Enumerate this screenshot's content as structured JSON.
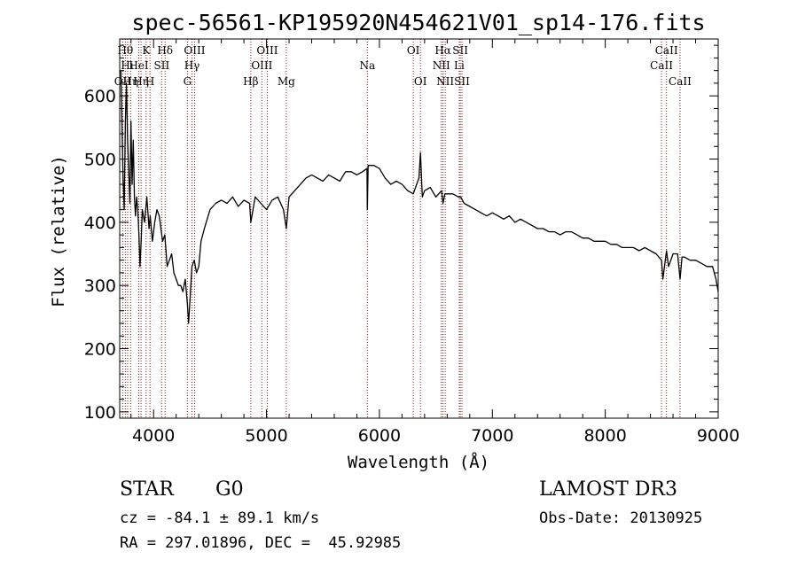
{
  "chart_data": {
    "type": "line",
    "title": "spec-56561-KP195920N454621V01_sp14-176.fits",
    "xlabel": "Wavelength (Å)",
    "ylabel": "Flux (relative)",
    "xlim": [
      3700,
      9000
    ],
    "ylim": [
      90,
      690
    ],
    "xticks": [
      4000,
      5000,
      6000,
      7000,
      8000,
      9000
    ],
    "yticks": [
      100,
      200,
      300,
      400,
      500,
      600
    ],
    "grid": false,
    "series": [
      {
        "color": "#000000",
        "x": [
          3710,
          3720,
          3730,
          3740,
          3750,
          3760,
          3770,
          3780,
          3790,
          3800,
          3810,
          3820,
          3830,
          3840,
          3850,
          3860,
          3870,
          3880,
          3890,
          3900,
          3920,
          3940,
          3960,
          3970,
          3990,
          4010,
          4030,
          4050,
          4080,
          4100,
          4120,
          4140,
          4160,
          4180,
          4200,
          4220,
          4240,
          4260,
          4280,
          4300,
          4310,
          4320,
          4330,
          4340,
          4360,
          4380,
          4400,
          4420,
          4450,
          4500,
          4550,
          4600,
          4650,
          4700,
          4750,
          4800,
          4850,
          4861,
          4900,
          4950,
          5000,
          5050,
          5100,
          5150,
          5175,
          5200,
          5250,
          5300,
          5350,
          5400,
          5450,
          5500,
          5550,
          5600,
          5650,
          5700,
          5750,
          5800,
          5850,
          5890,
          5893,
          5900,
          5950,
          6000,
          6050,
          6100,
          6150,
          6200,
          6250,
          6300,
          6350,
          6363,
          6380,
          6400,
          6450,
          6500,
          6550,
          6563,
          6580,
          6600,
          6650,
          6700,
          6720,
          6750,
          6800,
          6850,
          6900,
          6950,
          7000,
          7050,
          7100,
          7150,
          7200,
          7250,
          7300,
          7350,
          7400,
          7450,
          7500,
          7550,
          7600,
          7650,
          7700,
          7750,
          7800,
          7850,
          7900,
          7950,
          8000,
          8050,
          8100,
          8150,
          8200,
          8250,
          8300,
          8350,
          8400,
          8450,
          8498,
          8510,
          8542,
          8560,
          8600,
          8640,
          8662,
          8680,
          8700,
          8750,
          8800,
          8850,
          8900,
          8950,
          8980,
          9000
        ],
        "y": [
          640,
          560,
          470,
          420,
          560,
          620,
          530,
          480,
          430,
          560,
          460,
          530,
          440,
          410,
          440,
          420,
          380,
          330,
          370,
          420,
          400,
          440,
          390,
          410,
          370,
          400,
          420,
          410,
          370,
          380,
          330,
          340,
          350,
          320,
          310,
          300,
          300,
          290,
          310,
          270,
          240,
          270,
          300,
          330,
          340,
          320,
          330,
          370,
          390,
          420,
          430,
          435,
          430,
          440,
          425,
          435,
          430,
          400,
          440,
          430,
          420,
          435,
          440,
          420,
          390,
          440,
          450,
          460,
          470,
          475,
          470,
          465,
          475,
          470,
          465,
          480,
          480,
          475,
          480,
          485,
          420,
          490,
          490,
          485,
          470,
          460,
          465,
          460,
          450,
          445,
          470,
          510,
          440,
          450,
          455,
          440,
          450,
          430,
          445,
          445,
          445,
          440,
          440,
          430,
          425,
          420,
          415,
          410,
          415,
          410,
          405,
          410,
          400,
          405,
          400,
          395,
          390,
          390,
          385,
          385,
          380,
          385,
          385,
          380,
          375,
          375,
          370,
          370,
          370,
          365,
          365,
          360,
          360,
          360,
          355,
          360,
          355,
          350,
          340,
          310,
          355,
          330,
          350,
          350,
          310,
          345,
          345,
          340,
          340,
          335,
          330,
          330,
          310,
          290
        ]
      }
    ],
    "lines": [
      {
        "wl": 3727,
        "label": "OII",
        "row": 3
      },
      {
        "wl": 3750,
        "label": "Hθ",
        "row": 1
      },
      {
        "wl": 3770,
        "label": "Hι",
        "row": 2
      },
      {
        "wl": 3797,
        "label": "Hη",
        "row": 3
      },
      {
        "wl": 3869,
        "label": "HeI",
        "row": 2
      },
      {
        "wl": 3889,
        "label": "Hη",
        "row": 3
      },
      {
        "wl": 3934,
        "label": "K",
        "row": 1
      },
      {
        "wl": 3968,
        "label": "H",
        "row": 3
      },
      {
        "wl": 4072,
        "label": "SII",
        "row": 2
      },
      {
        "wl": 4102,
        "label": "Hδ",
        "row": 1
      },
      {
        "wl": 4300,
        "label": "G",
        "row": 3
      },
      {
        "wl": 4340,
        "label": "Hγ",
        "row": 2
      },
      {
        "wl": 4363,
        "label": "OIII",
        "row": 1
      },
      {
        "wl": 4861,
        "label": "Hβ",
        "row": 3
      },
      {
        "wl": 4959,
        "label": "OIII",
        "row": 2
      },
      {
        "wl": 5007,
        "label": "OIII",
        "row": 1
      },
      {
        "wl": 5175,
        "label": "Mg",
        "row": 3
      },
      {
        "wl": 5893,
        "label": "Na",
        "row": 2
      },
      {
        "wl": 6300,
        "label": "OI",
        "row": 1
      },
      {
        "wl": 6363,
        "label": "OI",
        "row": 3
      },
      {
        "wl": 6548,
        "label": "NII",
        "row": 2
      },
      {
        "wl": 6563,
        "label": "Hα",
        "row": 1
      },
      {
        "wl": 6583,
        "label": "NII",
        "row": 3
      },
      {
        "wl": 6707,
        "label": "Li",
        "row": 2
      },
      {
        "wl": 6716,
        "label": "SII",
        "row": 1
      },
      {
        "wl": 6731,
        "label": "SII",
        "row": 3
      },
      {
        "wl": 8498,
        "label": "CaII",
        "row": 2
      },
      {
        "wl": 8542,
        "label": "CaII",
        "row": 1
      },
      {
        "wl": 8662,
        "label": "CaII",
        "row": 3
      }
    ],
    "line_color": "#8b1a1a"
  },
  "footer": {
    "class_label": "STAR",
    "subclass": "G0",
    "cz": "cz = -84.1 ± 89.1 km/s",
    "coords": "RA = 297.01896, DEC =  45.92985",
    "survey": "LAMOST DR3",
    "obs_date": "Obs-Date: 20130925"
  }
}
